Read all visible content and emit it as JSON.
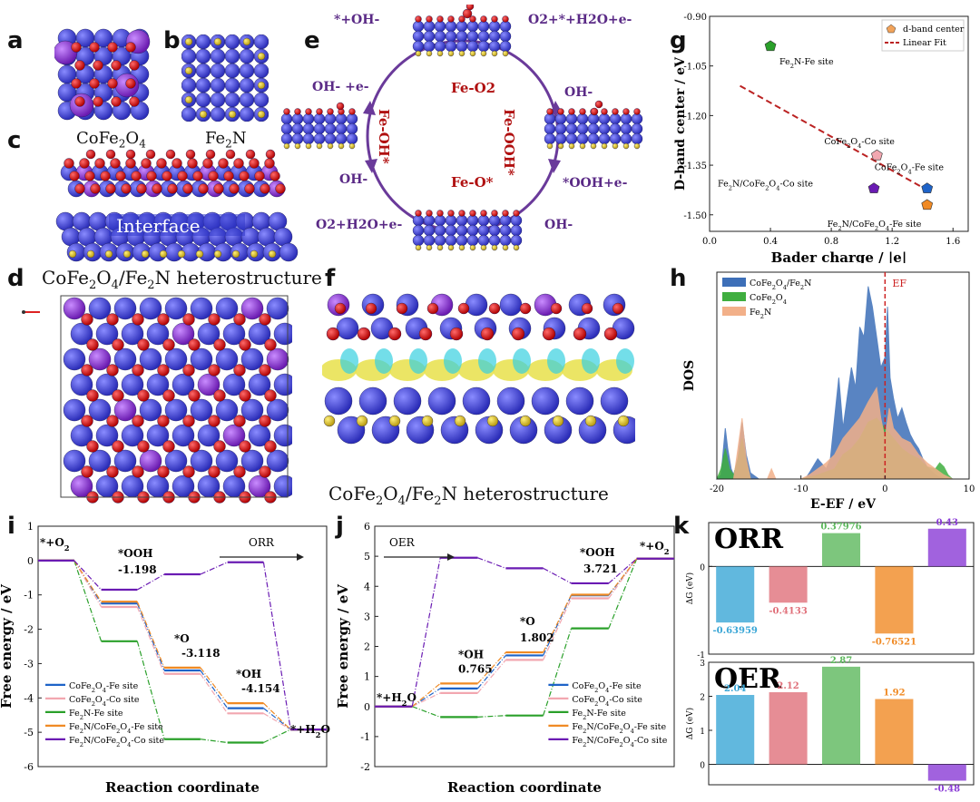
{
  "panels": {
    "a": {
      "letter": "a",
      "label": "CoFe2O4"
    },
    "b": {
      "letter": "b",
      "label": "Fe2N"
    },
    "c": {
      "letter": "c",
      "interface": "Interface"
    },
    "d": {
      "letter": "d",
      "label": "CoFe2O4/Fe2N heterostructure"
    },
    "e": {
      "letter": "e",
      "states": [
        "Fe-O2",
        "Fe-OOH*",
        "Fe-O*",
        "Fe-OH*"
      ],
      "steps": [
        "*+OH-",
        "O2+*+H2O+e-",
        "OH-",
        "OH- +e-",
        "OH-",
        "*OOH+e-",
        "OH-",
        "O2+H2O+e-"
      ]
    },
    "f": {
      "letter": "f",
      "label": "CoFe2O4/Fe2N heterostructure"
    },
    "g": {
      "letter": "g"
    },
    "h": {
      "letter": "h"
    },
    "i": {
      "letter": "i"
    },
    "j": {
      "letter": "j"
    },
    "k": {
      "letter": "k"
    }
  },
  "chart_data": [
    {
      "id": "g",
      "type": "scatter",
      "xlabel": "Bader charge / |e|",
      "ylabel": "D-band center / eV",
      "xlim": [
        0.0,
        1.7
      ],
      "ylim": [
        -1.55,
        -0.9
      ],
      "xticks": [
        "0.0",
        "0.4",
        "0.8",
        "1.2",
        "1.6"
      ],
      "yticks": [
        "-0.90",
        "-1.05",
        "-1.20",
        "-1.35",
        "-1.50"
      ],
      "legend": [
        "d-band center",
        "Linear Fit"
      ],
      "points": [
        {
          "label": "Fe2N-Fe site",
          "x": 0.4,
          "y": -0.99,
          "color": "#2aa02a"
        },
        {
          "label": "CoFe2O4-Co site",
          "x": 1.1,
          "y": -1.32,
          "color": "#f2a7b0"
        },
        {
          "label": "CoFe2O4-Fe site",
          "x": 1.43,
          "y": -1.42,
          "color": "#1e63c8"
        },
        {
          "label": "Fe2N/CoFe2O4-Co site",
          "x": 1.08,
          "y": -1.42,
          "color": "#6a1bb3"
        },
        {
          "label": "Fe2N/CoFe2O4-Fe site",
          "x": 1.43,
          "y": -1.47,
          "color": "#f08a24"
        }
      ],
      "fit": {
        "x": [
          0.2,
          1.45
        ],
        "y": [
          -1.11,
          -1.43
        ]
      }
    },
    {
      "id": "h",
      "type": "area",
      "xlabel": "E-EF / eV",
      "ylabel": "DOS",
      "xlim": [
        -20,
        10
      ],
      "xticks": [
        "-20",
        "-10",
        "0",
        "10"
      ],
      "ef_label": "EF",
      "series": [
        {
          "name": "CoFe2O4/Fe2N",
          "color": "#3d6fb8",
          "x": [
            -20,
            -19.5,
            -19,
            -18.7,
            -18.3,
            -18,
            -17.5,
            -17,
            -16.5,
            -16,
            -15,
            -14,
            -13,
            -12,
            -11,
            -10,
            -9.5,
            -9,
            -8,
            -7,
            -6.5,
            -6,
            -5.5,
            -5,
            -4.5,
            -4,
            -3.5,
            -3,
            -2.5,
            -2,
            -1.5,
            -1,
            -0.5,
            0,
            0.3,
            0.6,
            1,
            1.5,
            2,
            2.5,
            3,
            3.5,
            4,
            4.5,
            5,
            5.5,
            6,
            6.5,
            7,
            7.5,
            8,
            9,
            10
          ],
          "y": [
            0,
            0.02,
            0.25,
            0.15,
            0.05,
            0.02,
            0.1,
            0.28,
            0.12,
            0.03,
            0,
            0,
            0,
            0,
            0,
            0,
            0,
            0.03,
            0.1,
            0.05,
            0.1,
            0.3,
            0.5,
            0.25,
            0.4,
            0.55,
            0.45,
            0.75,
            0.7,
            0.95,
            0.85,
            0.7,
            0.55,
            0.6,
            0.85,
            0.5,
            0.4,
            0.3,
            0.35,
            0.28,
            0.22,
            0.18,
            0.15,
            0.1,
            0.06,
            0.04,
            0.02,
            0.01,
            0,
            0,
            0,
            0,
            0
          ]
        },
        {
          "name": "CoFe2O4",
          "color": "#3fae3f",
          "x": [
            -20,
            -19.5,
            -19,
            -18.5,
            -18,
            -17.5,
            -17,
            -16.5,
            -16,
            -10,
            -8,
            -6,
            -5,
            -4,
            -3,
            -2,
            -1,
            0,
            1,
            2,
            3,
            4,
            5,
            6,
            6.5,
            7,
            7.5,
            8,
            9,
            10
          ],
          "y": [
            0,
            0.05,
            0.15,
            0.05,
            0.02,
            0.1,
            0.2,
            0.08,
            0,
            0,
            0.02,
            0.05,
            0.12,
            0.15,
            0.2,
            0.28,
            0.3,
            0.25,
            0.2,
            0.15,
            0.12,
            0.1,
            0.06,
            0.05,
            0.08,
            0.06,
            0.02,
            0,
            0,
            0
          ]
        },
        {
          "name": "Fe2N",
          "color": "#f2b089",
          "x": [
            -20,
            -18,
            -17.5,
            -17,
            -16.5,
            -16,
            -14,
            -13.5,
            -13,
            -11,
            -10,
            -9,
            -8,
            -7,
            -6,
            -5,
            -4,
            -3,
            -2,
            -1,
            -0.5,
            0,
            0.5,
            1,
            2,
            3,
            4,
            5,
            6,
            7,
            8,
            10
          ],
          "y": [
            0,
            0,
            0.15,
            0.3,
            0.1,
            0,
            0,
            0.05,
            0,
            0,
            0,
            0.02,
            0.05,
            0.08,
            0.12,
            0.2,
            0.25,
            0.3,
            0.38,
            0.45,
            0.3,
            0.2,
            0.35,
            0.25,
            0.2,
            0.18,
            0.12,
            0.08,
            0.05,
            0.02,
            0,
            0
          ]
        }
      ]
    },
    {
      "id": "i",
      "type": "line",
      "title": "ORR",
      "xlabel": "Reaction coordinate",
      "ylabel": "Free energy / eV",
      "ylim": [
        -6,
        1
      ],
      "yticks": [
        "1",
        "0",
        "-1",
        "-2",
        "-3",
        "-4",
        "-5",
        "-6"
      ],
      "annotations": [
        {
          "text": "*+O2"
        },
        {
          "text": "*OOH"
        },
        {
          "text": "-1.198"
        },
        {
          "text": "*O"
        },
        {
          "text": "-3.118"
        },
        {
          "text": "*OH"
        },
        {
          "text": "-4.154"
        },
        {
          "text": "*+H2O"
        }
      ],
      "series": [
        {
          "name": "CoFe2O4-Fe site",
          "color": "#1e63c8",
          "values": [
            0,
            -1.25,
            -3.2,
            -4.3,
            -4.92
          ]
        },
        {
          "name": "CoFe2O4-Co site",
          "color": "#f2a7b0",
          "values": [
            0,
            -1.35,
            -3.3,
            -4.45,
            -4.92
          ]
        },
        {
          "name": "Fe2N-Fe site",
          "color": "#2aa02a",
          "values": [
            0,
            -2.35,
            -5.2,
            -5.3,
            -4.92
          ]
        },
        {
          "name": "Fe2N/CoFe2O4-Fe site",
          "color": "#f08a24",
          "values": [
            0,
            -1.198,
            -3.118,
            -4.154,
            -4.92
          ]
        },
        {
          "name": "Fe2N/CoFe2O4-Co site",
          "color": "#6a1bb3",
          "values": [
            0,
            -0.85,
            -0.4,
            -0.05,
            -4.92
          ]
        }
      ]
    },
    {
      "id": "j",
      "type": "line",
      "title": "OER",
      "xlabel": "Reaction coordinate",
      "ylabel": "Free energy / eV",
      "ylim": [
        -2,
        6
      ],
      "yticks": [
        "6",
        "5",
        "4",
        "3",
        "2",
        "1",
        "0",
        "-1",
        "-2"
      ],
      "annotations": [
        {
          "text": "*+H2O"
        },
        {
          "text": "*OH"
        },
        {
          "text": "0.765"
        },
        {
          "text": "*O"
        },
        {
          "text": "1.802"
        },
        {
          "text": "*OOH"
        },
        {
          "text": "3.721"
        },
        {
          "text": "*+O2"
        }
      ],
      "series": [
        {
          "name": "CoFe2O4-Fe site",
          "color": "#1e63c8",
          "values": [
            0,
            0.6,
            1.7,
            3.7,
            4.92
          ]
        },
        {
          "name": "CoFe2O4-Co site",
          "color": "#f2a7b0",
          "values": [
            0,
            0.45,
            1.55,
            3.6,
            4.92
          ]
        },
        {
          "name": "Fe2N-Fe site",
          "color": "#2aa02a",
          "values": [
            0,
            -0.35,
            -0.3,
            2.6,
            4.92
          ]
        },
        {
          "name": "Fe2N/CoFe2O4-Fe site",
          "color": "#f08a24",
          "values": [
            0,
            0.765,
            1.802,
            3.721,
            4.92
          ]
        },
        {
          "name": "Fe2N/CoFe2O4-Co site",
          "color": "#6a1bb3",
          "values": [
            0,
            4.95,
            4.6,
            4.1,
            4.92
          ]
        }
      ]
    },
    {
      "id": "k-orr",
      "type": "bar",
      "title": "ORR",
      "ylabel": "ΔG (eV)",
      "ylim": [
        -1,
        0.5
      ],
      "yticks": [
        "0",
        "-1"
      ],
      "values": [
        -0.63959,
        -0.4133,
        0.37976,
        -0.76521,
        0.43
      ],
      "labels": [
        "-0.63959",
        "-0.4133",
        "0.37976",
        "-0.76521",
        "0.43"
      ],
      "colors": [
        "#3aa6d6",
        "#e0707a",
        "#5cb85c",
        "#f08a24",
        "#8a3bd6"
      ]
    },
    {
      "id": "k-oer",
      "type": "bar",
      "title": "OER",
      "ylabel": "ΔG (eV)",
      "ylim": [
        -0.6,
        3
      ],
      "yticks": [
        "3",
        "2",
        "1",
        "0"
      ],
      "values": [
        2.04,
        2.12,
        2.87,
        1.92,
        -0.48
      ],
      "labels": [
        "2.04",
        "2.12",
        "2.87",
        "1.92",
        "-0.48"
      ],
      "colors": [
        "#3aa6d6",
        "#e0707a",
        "#5cb85c",
        "#f08a24",
        "#8a3bd6"
      ]
    }
  ]
}
